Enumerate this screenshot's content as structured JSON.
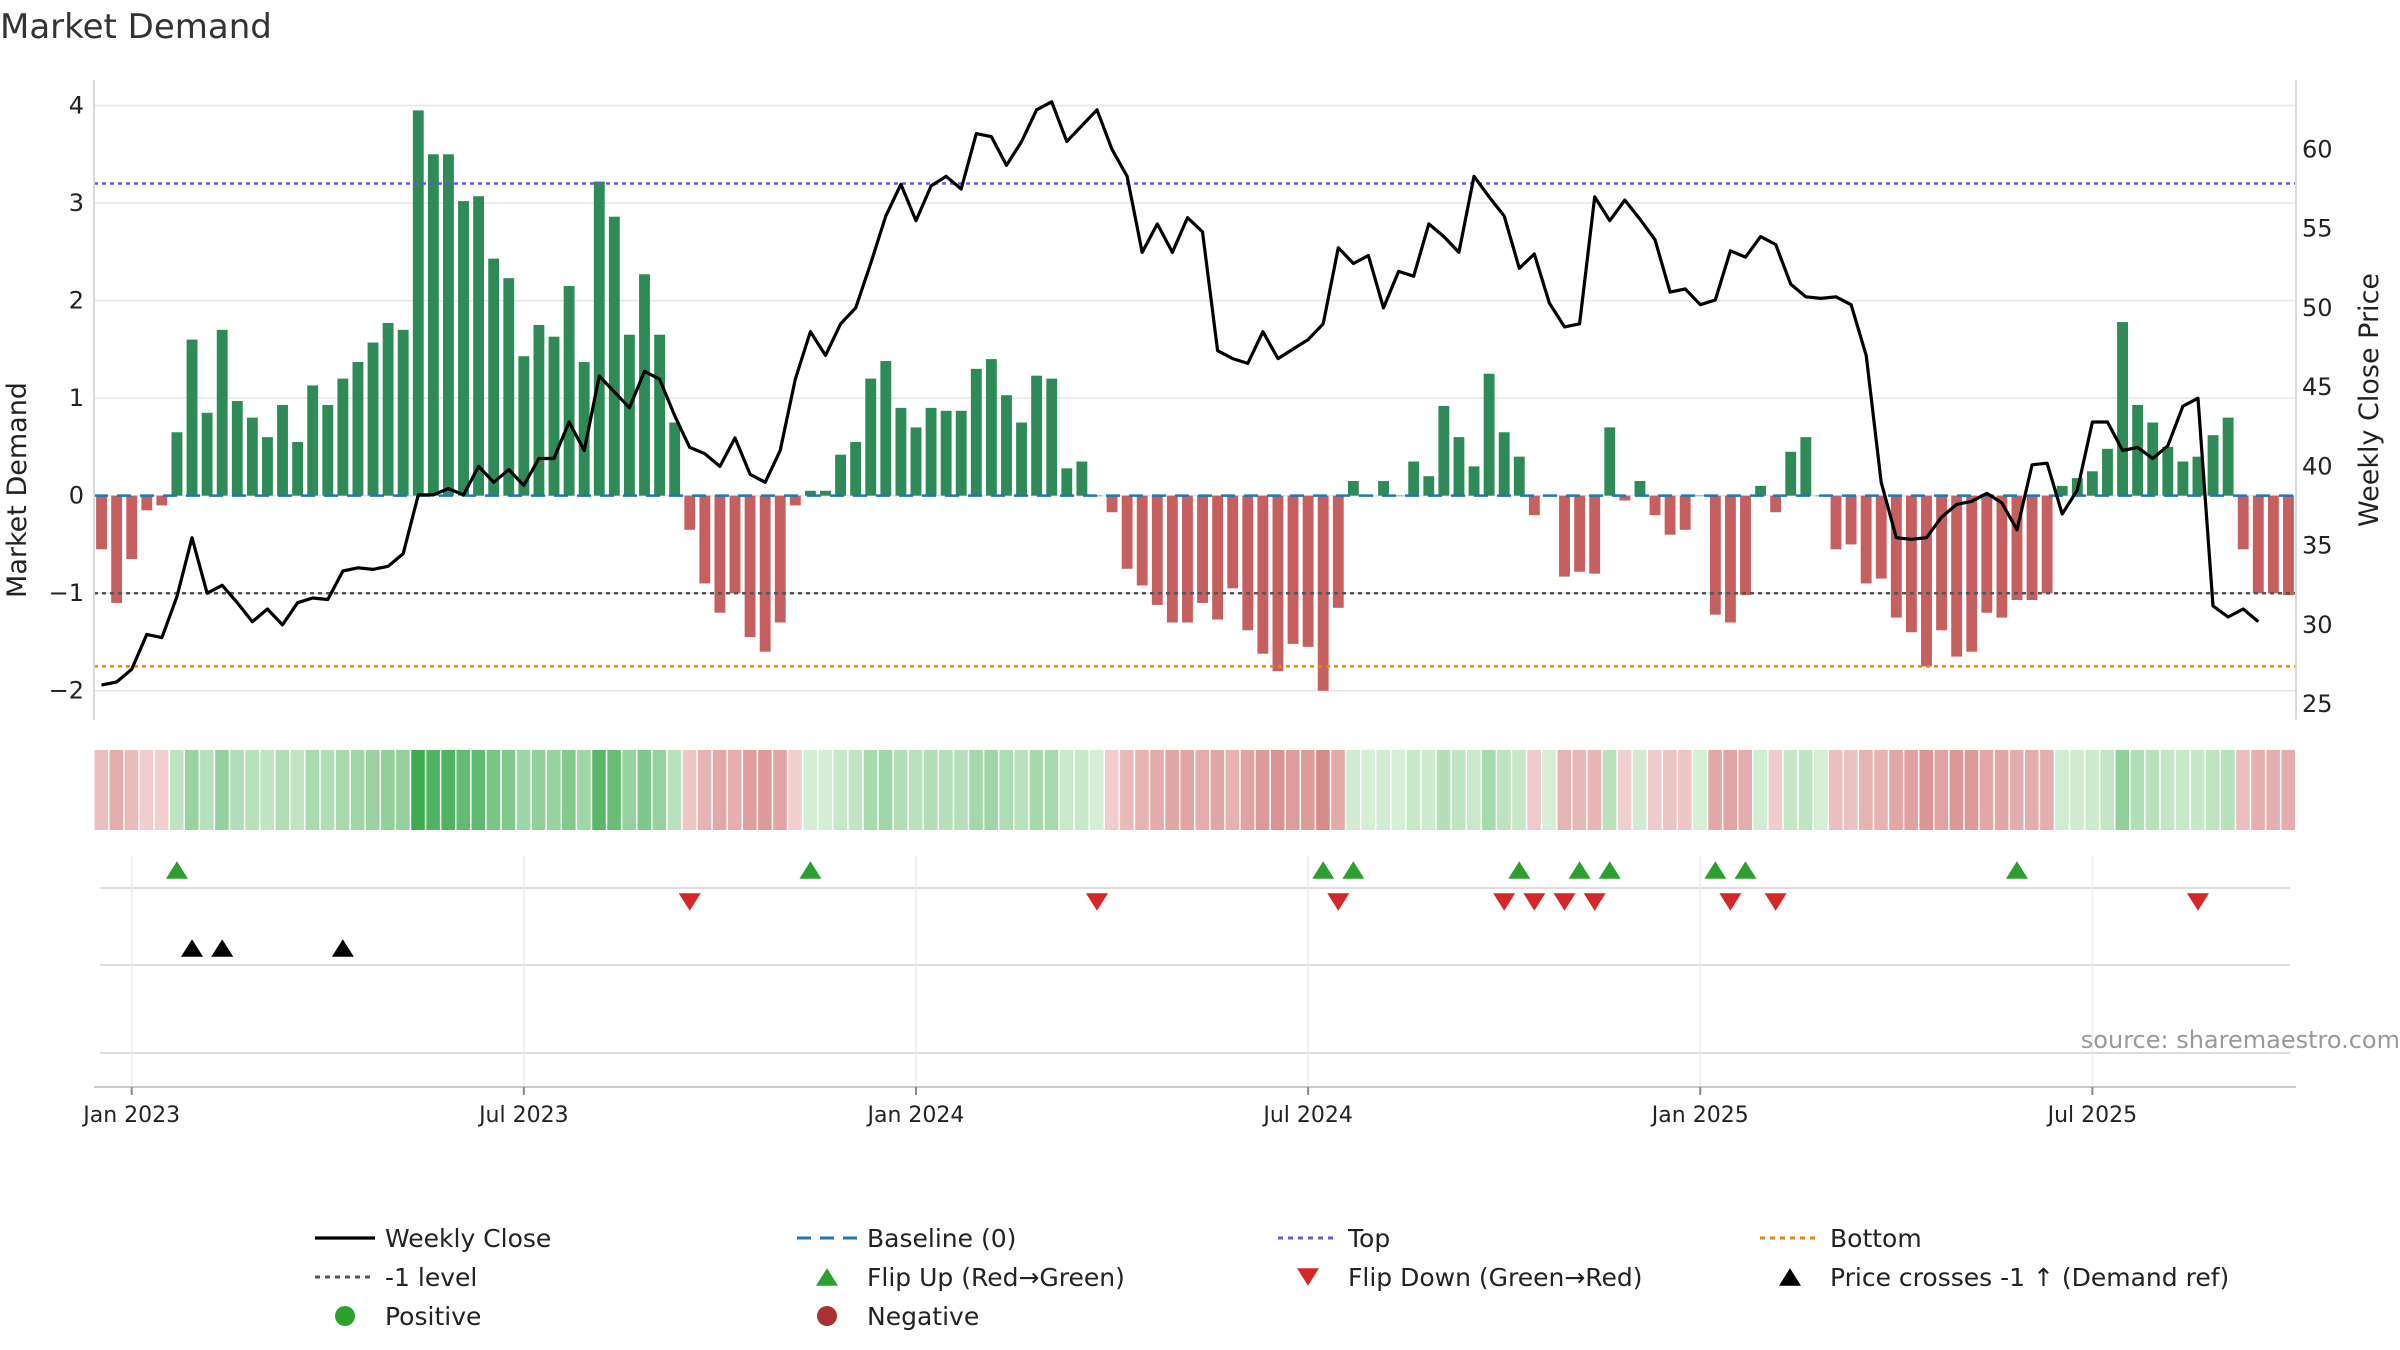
{
  "chart_data": {
    "type": "bar+line",
    "title": "Market Demand",
    "ylabel_left": "Market Demand",
    "ylabel_right": "Weekly Close Price",
    "ylim_left": [
      -2.3,
      4.2
    ],
    "ylim_right": [
      24,
      64
    ],
    "yticks_left": [
      4,
      3,
      2,
      1,
      0,
      -1,
      -2
    ],
    "yticks_left_labels": [
      "4",
      "3",
      "2",
      "1",
      "0",
      "−1",
      "−2"
    ],
    "yticks_right": [
      60,
      55,
      50,
      45,
      40,
      35,
      30,
      25
    ],
    "yticks_right_labels": [
      "60",
      "55",
      "50",
      "45",
      "40",
      "35",
      "30",
      "25"
    ],
    "reference_lines": {
      "top": 3.2,
      "minus_one": -1,
      "bottom": -1.75,
      "baseline": 0
    },
    "xticks": [
      {
        "label": "Jan 2023",
        "week": 2
      },
      {
        "label": "Jul 2023",
        "week": 28
      },
      {
        "label": "Jan 2024",
        "week": 54
      },
      {
        "label": "Jul 2024",
        "week": 80
      },
      {
        "label": "Jan 2025",
        "week": 106
      },
      {
        "label": "Jul 2025",
        "week": 132
      }
    ],
    "demand": [
      -0.55,
      -1.1,
      -0.65,
      -0.15,
      -0.1,
      0.65,
      1.6,
      0.85,
      1.7,
      0.97,
      0.8,
      0.6,
      0.93,
      0.55,
      1.13,
      0.93,
      1.2,
      1.37,
      1.57,
      1.77,
      1.7,
      3.95,
      3.5,
      3.5,
      3.02,
      3.07,
      2.43,
      2.23,
      1.43,
      1.75,
      1.63,
      2.15,
      1.37,
      3.22,
      2.86,
      1.65,
      2.27,
      1.65,
      0.75,
      -0.35,
      -0.9,
      -1.2,
      -1.0,
      -1.45,
      -1.6,
      -1.3,
      -0.1,
      0.05,
      0.05,
      0.42,
      0.55,
      1.2,
      1.38,
      0.9,
      0.7,
      0.9,
      0.87,
      0.87,
      1.3,
      1.4,
      1.03,
      0.75,
      1.23,
      1.2,
      0.28,
      0.35,
      0,
      -0.17,
      -0.75,
      -0.92,
      -1.12,
      -1.3,
      -1.3,
      -1.1,
      -1.27,
      -0.95,
      -1.38,
      -1.62,
      -1.8,
      -1.52,
      -1.55,
      -2.0,
      -1.15,
      0.15,
      0,
      0.15,
      0,
      0.35,
      0.2,
      0.92,
      0.6,
      0.3,
      1.25,
      0.65,
      0.4,
      -0.2,
      0,
      -0.83,
      -0.78,
      -0.8,
      0.7,
      -0.05,
      0.15,
      -0.2,
      -0.4,
      -0.35,
      0,
      -1.22,
      -1.3,
      -1.02,
      0.1,
      -0.17,
      0.45,
      0.6,
      0,
      -0.55,
      -0.5,
      -0.9,
      -0.85,
      -1.25,
      -1.4,
      -1.75,
      -1.38,
      -1.65,
      -1.6,
      -1.2,
      -1.25,
      -1.07,
      -1.07,
      -1.0,
      0.1,
      0.18,
      0.25,
      0.48,
      1.78,
      0.93,
      0.75,
      0.5,
      0.35,
      0.4,
      0.62,
      0.8,
      -0.55,
      -1.0,
      -1.0,
      -1.02
    ],
    "close": [
      26.2,
      26.4,
      27.2,
      29.4,
      29.2,
      31.8,
      35.5,
      32.0,
      32.5,
      31.4,
      30.2,
      31.0,
      30.0,
      31.4,
      31.7,
      31.6,
      33.4,
      33.6,
      33.5,
      33.7,
      34.5,
      38.2,
      38.2,
      38.6,
      38.2,
      40.0,
      39.0,
      39.8,
      38.8,
      40.5,
      40.5,
      42.8,
      41.0,
      45.7,
      44.7,
      43.7,
      46.0,
      45.5,
      43.2,
      41.2,
      40.8,
      40.0,
      41.8,
      39.5,
      39.0,
      41.0,
      45.5,
      48.5,
      47.0,
      49.0,
      50.0,
      52.8,
      55.8,
      57.8,
      55.5,
      57.7,
      58.3,
      57.5,
      61.0,
      60.8,
      59.0,
      60.5,
      62.5,
      63.0,
      60.5,
      61.5,
      62.5,
      60.0,
      58.3,
      53.5,
      55.3,
      53.5,
      55.7,
      54.8,
      47.3,
      46.8,
      46.5,
      48.5,
      46.8,
      47.4,
      48.0,
      49.0,
      53.8,
      52.8,
      53.3,
      50.0,
      52.3,
      52.0,
      55.3,
      54.5,
      53.5,
      58.3,
      57.0,
      55.8,
      52.5,
      53.4,
      50.3,
      48.8,
      49.0,
      57.0,
      55.5,
      56.8,
      55.6,
      54.3,
      51.0,
      51.2,
      50.2,
      50.5,
      53.6,
      53.2,
      54.5,
      54.0,
      51.5,
      50.7,
      50.6,
      50.7,
      50.2,
      47.0,
      39.0,
      35.5,
      35.4,
      35.5,
      36.8,
      37.6,
      37.8,
      38.3,
      37.7,
      36.0,
      40.1,
      40.2,
      37.0,
      38.5,
      42.8,
      42.8,
      41.0,
      41.2,
      40.5,
      41.3,
      43.8,
      44.3,
      31.2,
      30.5,
      31.0,
      30.2
    ],
    "heat_strip": "per-week colour intensity mirrors demand value (green positive, red negative)",
    "flip_up_weeks": [
      5,
      47,
      81,
      83,
      94,
      98,
      100,
      107,
      109,
      127
    ],
    "flip_down_weeks": [
      39,
      66,
      82,
      93,
      95,
      97,
      99,
      108,
      111,
      139
    ],
    "price_cross_weeks": [
      6,
      8,
      16
    ],
    "annotation": "source: sharemaestro.com",
    "legend": [
      {
        "label": "Weekly Close",
        "type": "line-solid",
        "color": "#000000"
      },
      {
        "label": "Baseline (0)",
        "type": "line-dashed",
        "color": "#1f77b4"
      },
      {
        "label": "Top",
        "type": "line-dotted",
        "color": "#6a5acd"
      },
      {
        "label": "Bottom",
        "type": "line-dotted",
        "color": "#e08a00"
      },
      {
        "label": "-1 level",
        "type": "line-dotted",
        "color": "#555555"
      },
      {
        "label": "Flip Up (Red→Green)",
        "type": "triangle-up",
        "color": "#2ca02c"
      },
      {
        "label": "Flip Down (Green→Red)",
        "type": "triangle-down",
        "color": "#d62728"
      },
      {
        "label": "Price crosses -1 ↑ (Demand ref)",
        "type": "triangle-up",
        "color": "#000000"
      },
      {
        "label": "Positive",
        "type": "dot",
        "color": "#2ca02c"
      },
      {
        "label": "Negative",
        "type": "dot",
        "color": "#a83232"
      }
    ],
    "colors": {
      "positive_bar": "#2e8b57",
      "negative_bar": "#c65f5f",
      "line": "#000000",
      "grid": "#e6e6e6"
    }
  }
}
